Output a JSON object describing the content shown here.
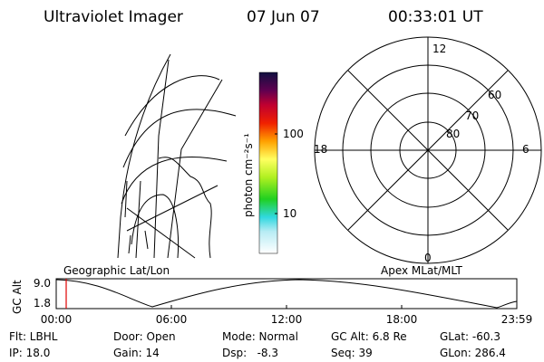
{
  "header": {
    "instrument": "Ultraviolet Imager",
    "date": "07 Jun 07",
    "time": "00:33:01 UT"
  },
  "colorbar": {
    "unit": "photon cm⁻²s⁻¹",
    "ticks": [
      "100",
      "10"
    ]
  },
  "polar": {
    "mlt_labels": [
      "12",
      "18",
      "6",
      "0"
    ],
    "lat_labels": [
      "60",
      "70",
      "80"
    ]
  },
  "altitude_plot": {
    "axis_label": "GC Alt",
    "y_labels": [
      "9.0",
      "1.8"
    ],
    "left_title": "Geographic Lat/Lon",
    "right_title": "Apex MLat/MLT",
    "time_labels": [
      "00:00",
      "06:00",
      "12:00",
      "18:00",
      "23:59"
    ]
  },
  "status": {
    "rows": [
      [
        "Flt: LBHL",
        "Door: Open",
        "Mode: Normal",
        "GC Alt: 6.8 Re",
        "GLat: -60.3"
      ],
      [
        "IP: 18.0",
        "Gain: 14",
        "Dsp:   -8.3",
        "Seq: 39",
        "GLon: 286.4"
      ]
    ]
  }
}
